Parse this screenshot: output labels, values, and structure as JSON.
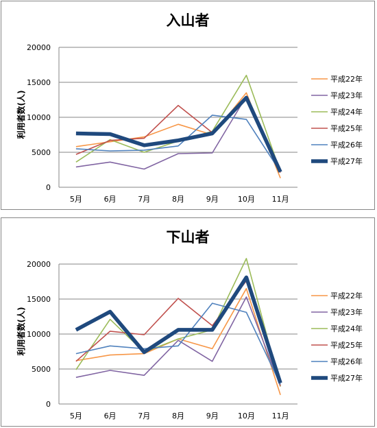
{
  "charts": [
    {
      "type": "line",
      "title": "入山者",
      "ylabel": "利用者数(人)",
      "xlabel": "",
      "categories": [
        "5月",
        "6月",
        "7月",
        "8月",
        "9月",
        "10月",
        "11月"
      ],
      "yticks": [
        "0",
        "5000",
        "10000",
        "15000",
        "20000"
      ],
      "ylim": [
        0,
        20000
      ],
      "grid": true,
      "legend": "right",
      "series": [
        {
          "name": "平成22年",
          "color": "#F79646",
          "values": [
            5800,
            6500,
            7200,
            9000,
            7500,
            13500,
            1300
          ]
        },
        {
          "name": "平成23年",
          "color": "#8064A2",
          "values": [
            2900,
            3600,
            2600,
            4800,
            4900,
            13000,
            2300
          ]
        },
        {
          "name": "平成24年",
          "color": "#9BBB59",
          "values": [
            3600,
            6800,
            5000,
            6600,
            8000,
            16000,
            2200
          ]
        },
        {
          "name": "平成25年",
          "color": "#C0504D",
          "values": [
            4700,
            6700,
            7000,
            11700,
            7800,
            13000,
            2100
          ]
        },
        {
          "name": "平成26年",
          "color": "#4F81BD",
          "values": [
            5500,
            5200,
            5300,
            5900,
            10300,
            9700,
            2200
          ]
        },
        {
          "name": "平成27年",
          "color": "#1F497D",
          "bold": true,
          "values": [
            7700,
            7600,
            6000,
            6700,
            7700,
            12800,
            2200
          ]
        }
      ]
    },
    {
      "type": "line",
      "title": "下山者",
      "ylabel": "利用者数(人)",
      "xlabel": "",
      "categories": [
        "5月",
        "6月",
        "7月",
        "8月",
        "9月",
        "10月",
        "11月"
      ],
      "yticks": [
        "0",
        "5000",
        "10000",
        "15000",
        "20000"
      ],
      "ylim": [
        0,
        20000
      ],
      "grid": true,
      "legend": "right",
      "series": [
        {
          "name": "平成22年",
          "color": "#F79646",
          "values": [
            6200,
            7000,
            7200,
            9300,
            7900,
            16500,
            1300
          ]
        },
        {
          "name": "平成23年",
          "color": "#8064A2",
          "values": [
            3800,
            4800,
            4100,
            9100,
            6100,
            15300,
            2500
          ]
        },
        {
          "name": "平成24年",
          "color": "#9BBB59",
          "values": [
            4900,
            12100,
            7400,
            9300,
            10600,
            20800,
            2500
          ]
        },
        {
          "name": "平成25年",
          "color": "#C0504D",
          "values": [
            6100,
            10400,
            9900,
            15100,
            11200,
            17600,
            2600
          ]
        },
        {
          "name": "平成26年",
          "color": "#4F81BD",
          "values": [
            7200,
            8300,
            7900,
            8300,
            14400,
            13100,
            2800
          ]
        },
        {
          "name": "平成27年",
          "color": "#1F497D",
          "bold": true,
          "values": [
            10600,
            13200,
            7400,
            10600,
            10600,
            18100,
            3000
          ]
        }
      ]
    }
  ],
  "chart_data": [
    {
      "type": "line",
      "title": "入山者",
      "ylabel": "利用者数(人)",
      "xlabel": "",
      "categories": [
        "5月",
        "6月",
        "7月",
        "8月",
        "9月",
        "10月",
        "11月"
      ],
      "ylim": [
        0,
        20000
      ],
      "grid": true,
      "legend": "right",
      "series": [
        {
          "name": "平成22年",
          "values": [
            5800,
            6500,
            7200,
            9000,
            7500,
            13500,
            1300
          ]
        },
        {
          "name": "平成23年",
          "values": [
            2900,
            3600,
            2600,
            4800,
            4900,
            13000,
            2300
          ]
        },
        {
          "name": "平成24年",
          "values": [
            3600,
            6800,
            5000,
            6600,
            8000,
            16000,
            2200
          ]
        },
        {
          "name": "平成25年",
          "values": [
            4700,
            6700,
            7000,
            11700,
            7800,
            13000,
            2100
          ]
        },
        {
          "name": "平成26年",
          "values": [
            5500,
            5200,
            5300,
            5900,
            10300,
            9700,
            2200
          ]
        },
        {
          "name": "平成27年",
          "values": [
            7700,
            7600,
            6000,
            6700,
            7700,
            12800,
            2200
          ]
        }
      ]
    },
    {
      "type": "line",
      "title": "下山者",
      "ylabel": "利用者数(人)",
      "xlabel": "",
      "categories": [
        "5月",
        "6月",
        "7月",
        "8月",
        "9月",
        "10月",
        "11月"
      ],
      "ylim": [
        0,
        20000
      ],
      "grid": true,
      "legend": "right",
      "series": [
        {
          "name": "平成22年",
          "values": [
            6200,
            7000,
            7200,
            9300,
            7900,
            16500,
            1300
          ]
        },
        {
          "name": "平成23年",
          "values": [
            3800,
            4800,
            4100,
            9100,
            6100,
            15300,
            2500
          ]
        },
        {
          "name": "平成24年",
          "values": [
            4900,
            12100,
            7400,
            9300,
            10600,
            20800,
            2500
          ]
        },
        {
          "name": "平成25年",
          "values": [
            6100,
            10400,
            9900,
            15100,
            11200,
            17600,
            2600
          ]
        },
        {
          "name": "平成26年",
          "values": [
            7200,
            8300,
            7900,
            8300,
            14400,
            13100,
            2800
          ]
        },
        {
          "name": "平成27年",
          "values": [
            10600,
            13200,
            7400,
            10600,
            10600,
            18100,
            3000
          ]
        }
      ]
    }
  ]
}
